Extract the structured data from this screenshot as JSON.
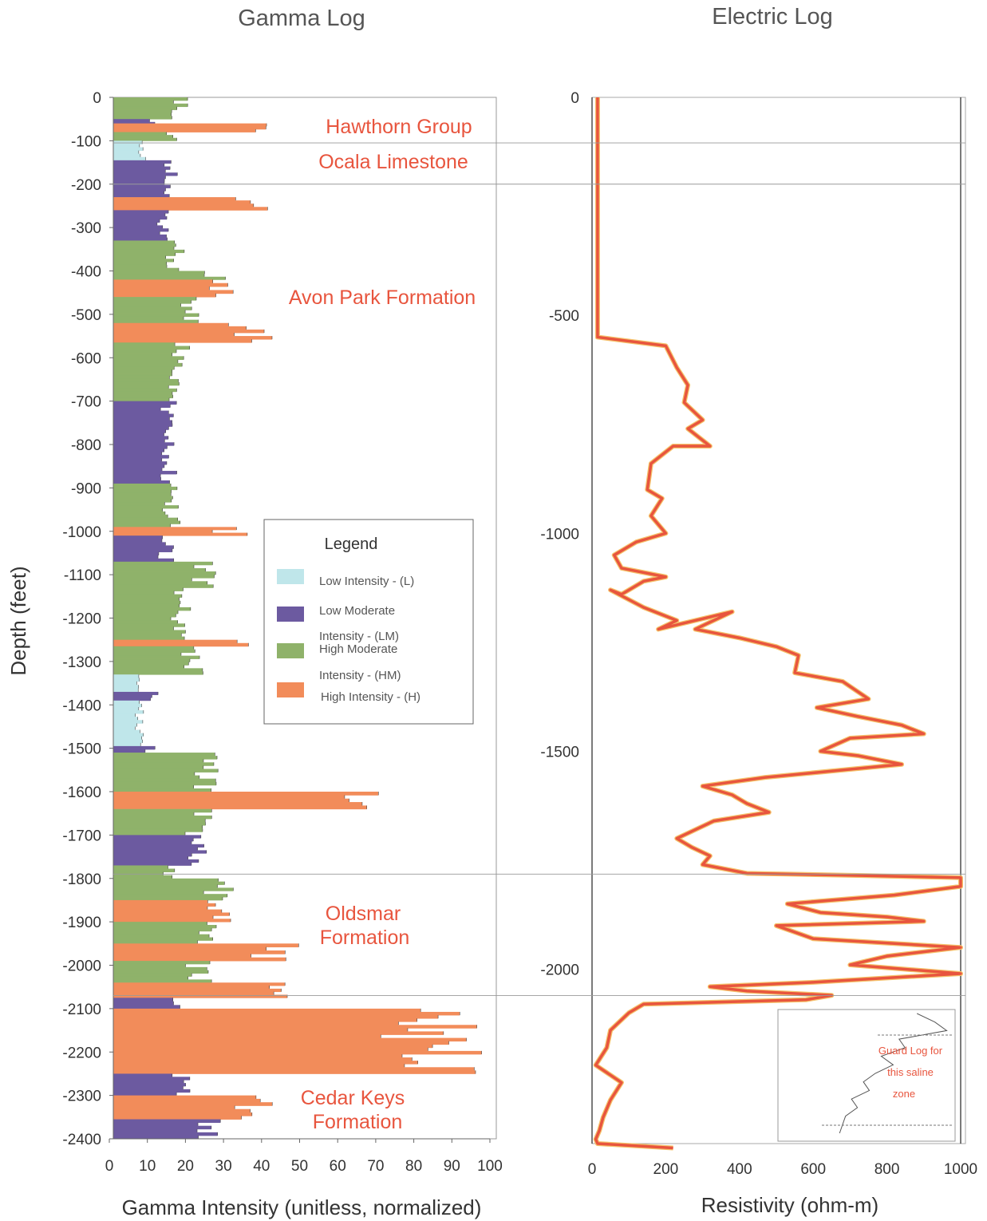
{
  "chart_data": [
    {
      "type": "bar",
      "orientation": "horizontal",
      "title": "Gamma Log",
      "xlabel": "Gamma Intensity (unitless, normalized)",
      "ylabel": "Depth (feet)",
      "xlim": [
        0,
        100
      ],
      "ylim": [
        -2400,
        0
      ],
      "xticks": [
        "0",
        "10",
        "20",
        "30",
        "40",
        "50",
        "60",
        "70",
        "80",
        "90",
        "100"
      ],
      "yticks": [
        "0",
        "-100",
        "-200",
        "-300",
        "-400",
        "-500",
        "-600",
        "-700",
        "-800",
        "-900",
        "-1000",
        "-1100",
        "-1200",
        "-1300",
        "-1400",
        "-1500",
        "-1600",
        "-1700",
        "-1800",
        "-1900",
        "-2000",
        "-2100",
        "-2200",
        "-2300",
        "-2400"
      ],
      "legend": {
        "title": "Legend",
        "items": [
          "Low Intensity - (L)",
          "Low Moderate",
          "Intensity - (LM)",
          "High Moderate",
          "Intensity - (HM)",
          "High Intensity - (H)"
        ]
      },
      "class_colors": {
        "L": "#bfe6ea",
        "LM": "#6c5aa0",
        "HM": "#8fb26a",
        "H": "#f28c5a"
      },
      "formations": [
        {
          "name": "Hawthorn Group",
          "lines": [
            "Hawthorn Group"
          ]
        },
        {
          "name": "Ocala Limestone",
          "lines": [
            "Ocala Limestone"
          ]
        },
        {
          "name": "Avon Park Formation",
          "lines": [
            "Avon Park Formation"
          ]
        },
        {
          "name": "Oldsmar Formation",
          "lines": [
            "Oldsmar",
            "Formation"
          ]
        },
        {
          "name": "Cedar Keys Formation",
          "lines": [
            "Cedar Keys",
            "Formation"
          ]
        }
      ],
      "boundaries": [
        -105,
        -200,
        -1790,
        -2070
      ],
      "segments": [
        {
          "top": 0,
          "bottom": -50,
          "value": 21,
          "class": "HM"
        },
        {
          "top": -50,
          "bottom": -70,
          "value": 14,
          "class": "LM"
        },
        {
          "top": -60,
          "bottom": -80,
          "value": 47,
          "class": "H"
        },
        {
          "top": -80,
          "bottom": -100,
          "value": 18,
          "class": "HM"
        },
        {
          "top": -100,
          "bottom": -145,
          "value": 10,
          "class": "L"
        },
        {
          "top": -145,
          "bottom": -230,
          "value": 18,
          "class": "LM"
        },
        {
          "top": -230,
          "bottom": -260,
          "value": 43,
          "class": "H"
        },
        {
          "top": -260,
          "bottom": -330,
          "value": 17,
          "class": "LM"
        },
        {
          "top": -330,
          "bottom": -400,
          "value": 20,
          "class": "HM"
        },
        {
          "top": -400,
          "bottom": -420,
          "value": 34,
          "class": "HM"
        },
        {
          "top": -420,
          "bottom": -460,
          "value": 35,
          "class": "H"
        },
        {
          "top": -460,
          "bottom": -520,
          "value": 24,
          "class": "HM"
        },
        {
          "top": -520,
          "bottom": -565,
          "value": 43,
          "class": "H"
        },
        {
          "top": -565,
          "bottom": -620,
          "value": 22,
          "class": "HM"
        },
        {
          "top": -620,
          "bottom": -700,
          "value": 20,
          "class": "HM"
        },
        {
          "top": -700,
          "bottom": -890,
          "value": 18,
          "class": "LM"
        },
        {
          "top": -890,
          "bottom": -990,
          "value": 19,
          "class": "HM"
        },
        {
          "top": -990,
          "bottom": -1010,
          "value": 37,
          "class": "H"
        },
        {
          "top": -1010,
          "bottom": -1070,
          "value": 17,
          "class": "LM"
        },
        {
          "top": -1070,
          "bottom": -1130,
          "value": 29,
          "class": "HM"
        },
        {
          "top": -1130,
          "bottom": -1250,
          "value": 22,
          "class": "HM"
        },
        {
          "top": -1250,
          "bottom": -1265,
          "value": 37,
          "class": "H"
        },
        {
          "top": -1265,
          "bottom": -1330,
          "value": 25,
          "class": "HM"
        },
        {
          "top": -1330,
          "bottom": -1370,
          "value": 8,
          "class": "L"
        },
        {
          "top": -1370,
          "bottom": -1390,
          "value": 14,
          "class": "LM"
        },
        {
          "top": -1390,
          "bottom": -1495,
          "value": 9,
          "class": "L"
        },
        {
          "top": -1495,
          "bottom": -1510,
          "value": 12,
          "class": "LM"
        },
        {
          "top": -1510,
          "bottom": -1600,
          "value": 29,
          "class": "HM"
        },
        {
          "top": -1600,
          "bottom": -1640,
          "value": 80,
          "class": "H"
        },
        {
          "top": -1640,
          "bottom": -1700,
          "value": 27,
          "class": "HM"
        },
        {
          "top": -1700,
          "bottom": -1770,
          "value": 26,
          "class": "LM"
        },
        {
          "top": -1770,
          "bottom": -1800,
          "value": 19,
          "class": "HM"
        },
        {
          "top": -1800,
          "bottom": -1850,
          "value": 34,
          "class": "HM"
        },
        {
          "top": -1850,
          "bottom": -1900,
          "value": 33,
          "class": "H"
        },
        {
          "top": -1900,
          "bottom": -1950,
          "value": 29,
          "class": "HM"
        },
        {
          "top": -1950,
          "bottom": -1990,
          "value": 50,
          "class": "H"
        },
        {
          "top": -1990,
          "bottom": -2040,
          "value": 27,
          "class": "HM"
        },
        {
          "top": -2040,
          "bottom": -2075,
          "value": 53,
          "class": "H"
        },
        {
          "top": -2075,
          "bottom": -2100,
          "value": 21,
          "class": "LM"
        },
        {
          "top": -2100,
          "bottom": -2250,
          "value": 98,
          "class": "H"
        },
        {
          "top": -2250,
          "bottom": -2300,
          "value": 22,
          "class": "LM"
        },
        {
          "top": -2300,
          "bottom": -2355,
          "value": 44,
          "class": "H"
        },
        {
          "top": -2355,
          "bottom": -2400,
          "value": 31,
          "class": "LM"
        }
      ]
    },
    {
      "type": "line",
      "title": "Electric Log",
      "xlabel": "Resistivity (ohm-m)",
      "ylabel": "",
      "xlim": [
        0,
        1000
      ],
      "ylim": [
        -2400,
        0
      ],
      "xticks": [
        "0",
        "200",
        "400",
        "600",
        "800",
        "1000"
      ],
      "yticks": [
        "0",
        "-500",
        "-1000",
        "-1500",
        "-2000"
      ],
      "line_color": "#e8553e",
      "series": [
        {
          "x": [
            15,
            15,
            15,
            200,
            230,
            260,
            250,
            300,
            260,
            320,
            220,
            160,
            150,
            190,
            160,
            200,
            120,
            60,
            80,
            200,
            140,
            80,
            50,
            140,
            230,
            180,
            380,
            280,
            400,
            500,
            560,
            550,
            680,
            750,
            610,
            720,
            840,
            900,
            700,
            620,
            720,
            840,
            470,
            300,
            380,
            420,
            480,
            330,
            280,
            230,
            270,
            320,
            300,
            420,
            720,
            1000,
            1000,
            820,
            530,
            620,
            800,
            900,
            500,
            600,
            1000,
            800,
            700,
            1000,
            600,
            320,
            420,
            650,
            580,
            140,
            100,
            50,
            40,
            10,
            80,
            50,
            30,
            20,
            10,
            15,
            220
          ],
          "y": [
            0,
            -300,
            -550,
            -570,
            -620,
            -660,
            -700,
            -740,
            -760,
            -800,
            -800,
            -840,
            -900,
            -920,
            -960,
            -1000,
            -1020,
            -1050,
            -1080,
            -1100,
            -1110,
            -1140,
            -1130,
            -1170,
            -1200,
            -1220,
            -1180,
            -1220,
            -1240,
            -1260,
            -1280,
            -1320,
            -1340,
            -1380,
            -1400,
            -1420,
            -1440,
            -1460,
            -1470,
            -1500,
            -1510,
            -1530,
            -1560,
            -1580,
            -1600,
            -1620,
            -1640,
            -1660,
            -1680,
            -1700,
            -1720,
            -1740,
            -1760,
            -1780,
            -1785,
            -1790,
            -1810,
            -1830,
            -1850,
            -1870,
            -1880,
            -1890,
            -1900,
            -1930,
            -1950,
            -1970,
            -1990,
            -2010,
            -2030,
            -2040,
            -2050,
            -2060,
            -2070,
            -2080,
            -2100,
            -2140,
            -2180,
            -2220,
            -2260,
            -2300,
            -2340,
            -2370,
            -2390,
            -2400,
            -2410
          ]
        }
      ],
      "inset": {
        "label_lines": [
          "Guard Log for",
          "this saline",
          "zone"
        ],
        "x": [
          200,
          230,
          250,
          170,
          180,
          140,
          160,
          130,
          110,
          120,
          90,
          100,
          80,
          70
        ],
        "y": [
          0,
          -5,
          -10,
          -15,
          -20,
          -25,
          -30,
          -35,
          -40,
          -45,
          -50,
          -55,
          -60,
          -70
        ]
      }
    }
  ]
}
